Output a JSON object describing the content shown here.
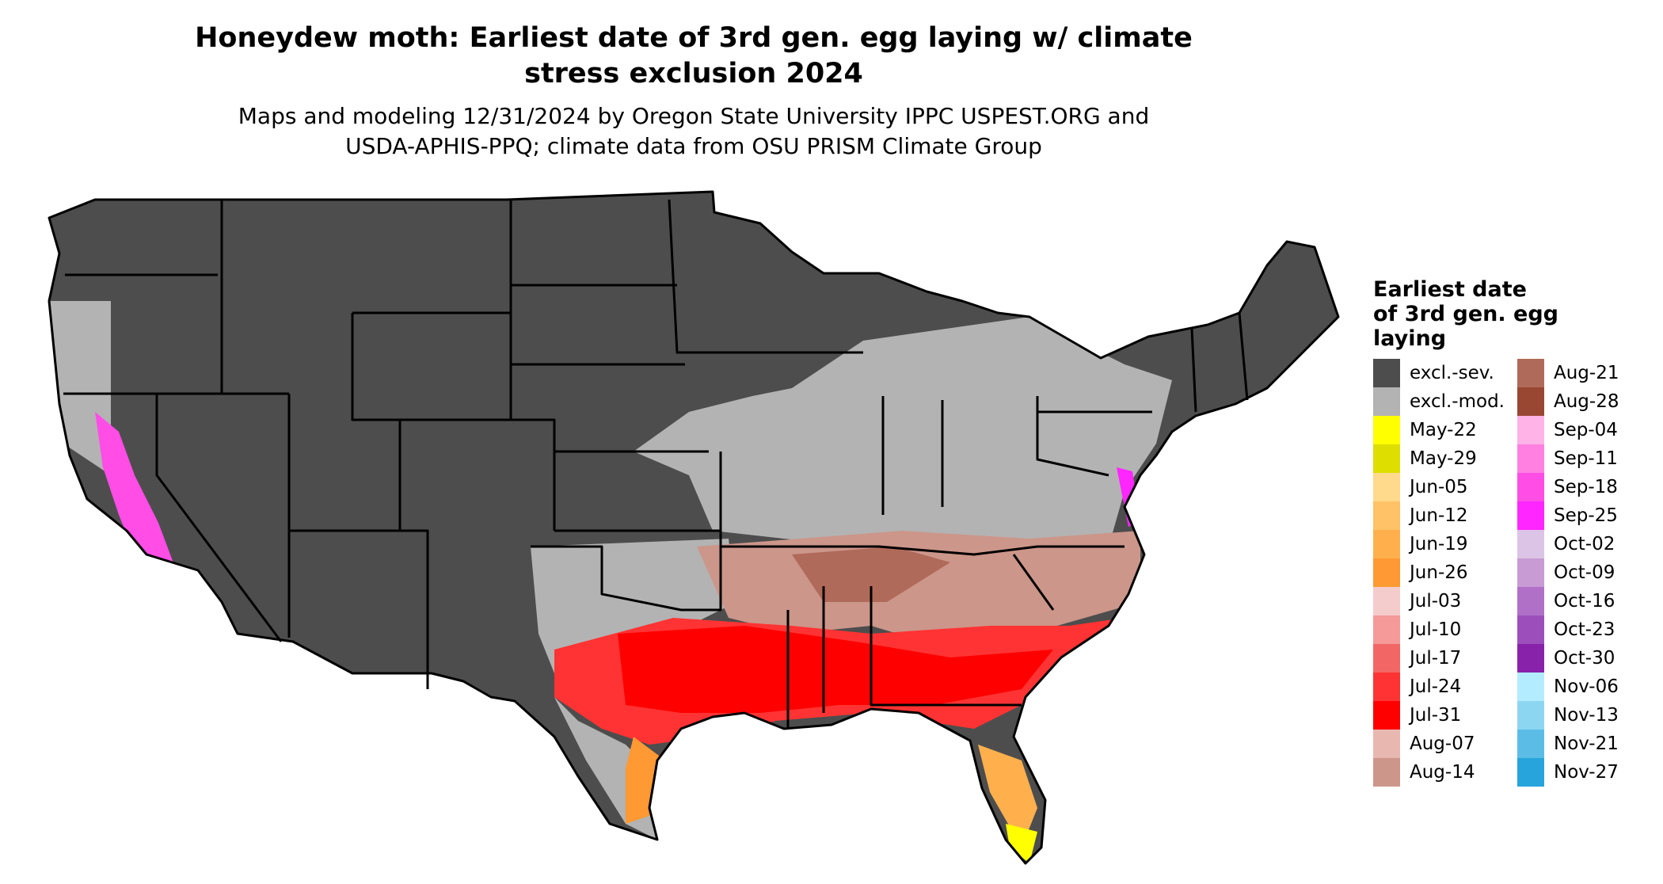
{
  "title_line1": "Honeydew moth: Earliest date of 3rd gen. egg laying w/ climate",
  "title_line2": "stress exclusion 2024",
  "subtitle_line1": "Maps and modeling 12/31/2024 by Oregon State University IPPC USPEST.ORG and",
  "subtitle_line2": "USDA-APHIS-PPQ; climate data from OSU PRISM Climate Group",
  "legend": {
    "title_line1": "Earliest date",
    "title_line2": "of 3rd gen. egg",
    "title_line3": "laying",
    "items": [
      {
        "label": "excl.-sev.",
        "color": "#4d4d4d"
      },
      {
        "label": "excl.-mod.",
        "color": "#b3b3b3"
      },
      {
        "label": "May-22",
        "color": "#ffff00"
      },
      {
        "label": "May-29",
        "color": "#dede00"
      },
      {
        "label": "Jun-05",
        "color": "#ffd98c"
      },
      {
        "label": "Jun-12",
        "color": "#ffc266"
      },
      {
        "label": "Jun-19",
        "color": "#ffb04d"
      },
      {
        "label": "Jun-26",
        "color": "#ff9933"
      },
      {
        "label": "Jul-03",
        "color": "#f5cccc"
      },
      {
        "label": "Jul-10",
        "color": "#f59999"
      },
      {
        "label": "Jul-17",
        "color": "#f26666"
      },
      {
        "label": "Jul-24",
        "color": "#ff3333"
      },
      {
        "label": "Jul-31",
        "color": "#ff0000"
      },
      {
        "label": "Aug-07",
        "color": "#e8b8b0"
      },
      {
        "label": "Aug-14",
        "color": "#cc968a"
      },
      {
        "label": "Aug-21",
        "color": "#b06a5a"
      },
      {
        "label": "Aug-28",
        "color": "#994733"
      },
      {
        "label": "Sep-04",
        "color": "#ffb3e6"
      },
      {
        "label": "Sep-11",
        "color": "#ff80e0"
      },
      {
        "label": "Sep-18",
        "color": "#ff4de6"
      },
      {
        "label": "Sep-25",
        "color": "#ff26ff"
      },
      {
        "label": "Oct-02",
        "color": "#dcc4e6"
      },
      {
        "label": "Oct-09",
        "color": "#c89bd4"
      },
      {
        "label": "Oct-16",
        "color": "#b070c8"
      },
      {
        "label": "Oct-23",
        "color": "#9c4fba"
      },
      {
        "label": "Oct-30",
        "color": "#8822aa"
      },
      {
        "label": "Nov-06",
        "color": "#b3ecff"
      },
      {
        "label": "Nov-13",
        "color": "#8dd6f2"
      },
      {
        "label": "Nov-21",
        "color": "#5bbde6"
      },
      {
        "label": "Nov-27",
        "color": "#26a4db"
      }
    ]
  }
}
